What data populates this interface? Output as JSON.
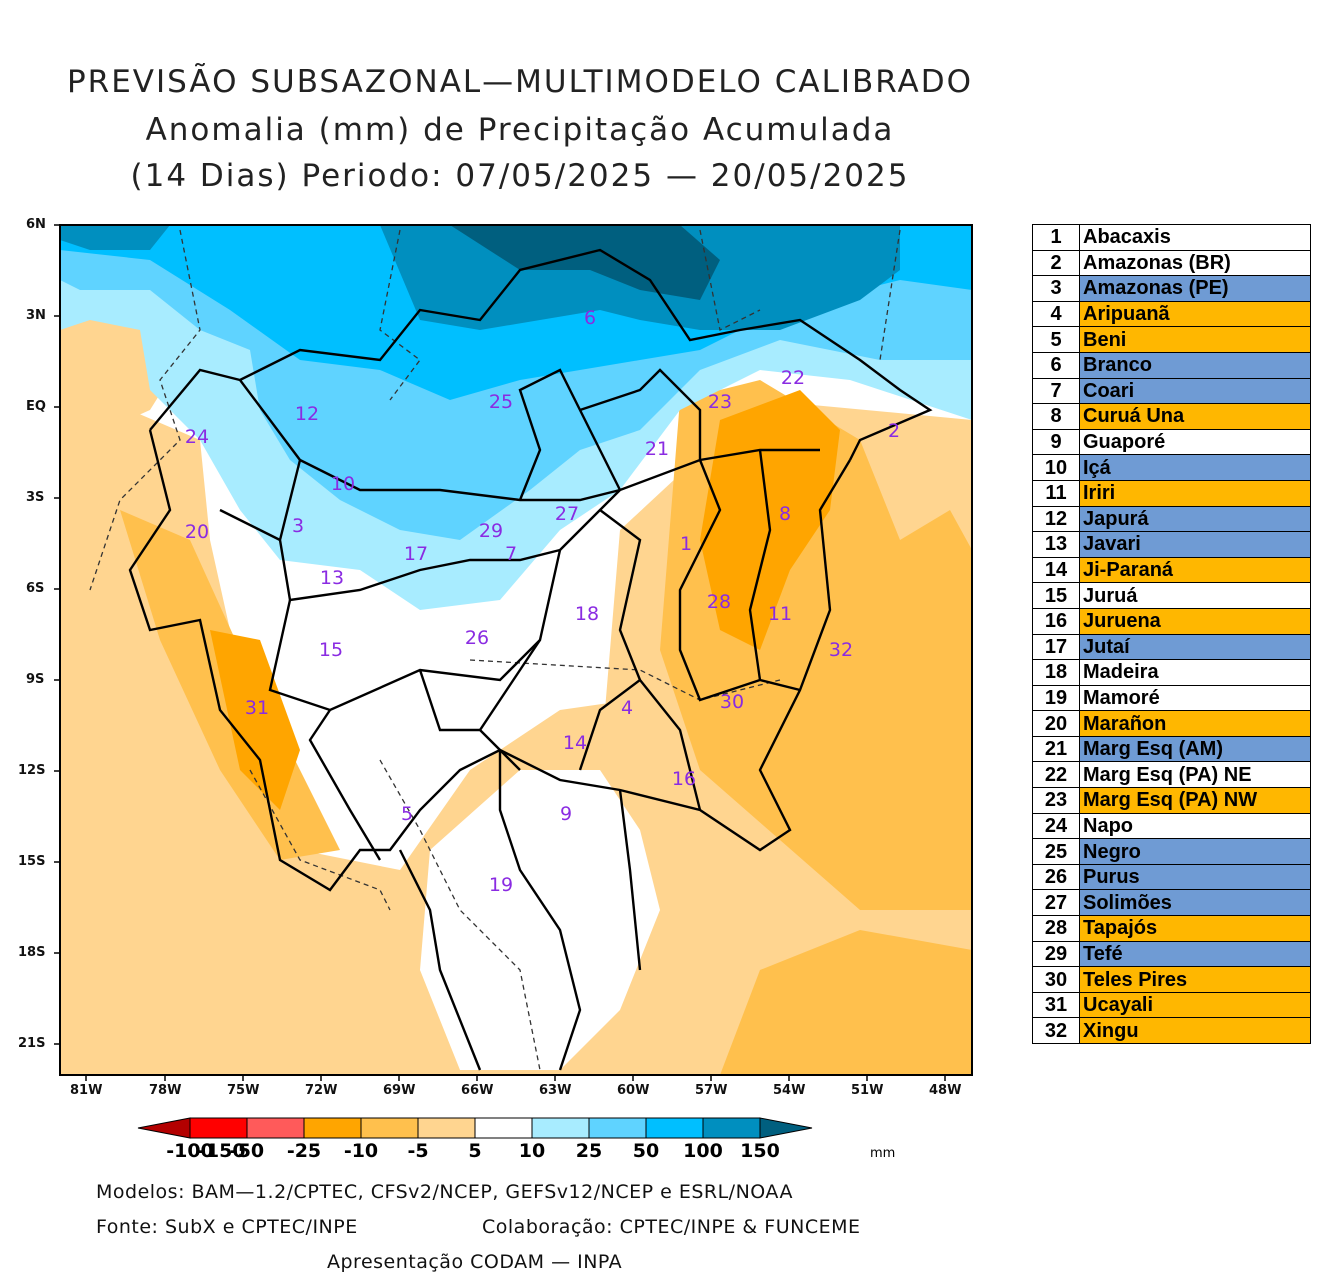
{
  "title": {
    "line1": "PREVISÃO SUBSAZONAL—MULTIMODELO CALIBRADO",
    "line2": "Anomalia (mm) de Precipitação Acumulada",
    "line3": "(14 Dias) Periodo: 07/05/2025 — 20/05/2025"
  },
  "map": {
    "lat_labels": [
      "6N",
      "3N",
      "EQ",
      "3S",
      "6S",
      "9S",
      "12S",
      "15S",
      "18S",
      "21S"
    ],
    "lon_labels": [
      "81W",
      "78W",
      "75W",
      "72W",
      "69W",
      "66W",
      "63W",
      "60W",
      "57W",
      "54W",
      "51W",
      "48W"
    ],
    "basin_numbers": [
      "1",
      "2",
      "3",
      "4",
      "5",
      "6",
      "7",
      "8",
      "9",
      "10",
      "11",
      "12",
      "13",
      "14",
      "15",
      "16",
      "17",
      "18",
      "19",
      "20",
      "21",
      "22",
      "23",
      "24",
      "25",
      "26",
      "27",
      "28",
      "29",
      "30",
      "31",
      "32"
    ],
    "label_color": "#8a2be2"
  },
  "legend": {
    "rows": [
      {
        "num": "1",
        "name": "Abacaxis",
        "color": "#ffffff"
      },
      {
        "num": "2",
        "name": "Amazonas (BR)",
        "color": "#ffffff"
      },
      {
        "num": "3",
        "name": "Amazonas (PE)",
        "color": "#6f9bd4"
      },
      {
        "num": "4",
        "name": "Aripuanã",
        "color": "#ffb700"
      },
      {
        "num": "5",
        "name": "Beni",
        "color": "#ffb700"
      },
      {
        "num": "6",
        "name": "Branco",
        "color": "#6f9bd4"
      },
      {
        "num": "7",
        "name": "Coari",
        "color": "#6f9bd4"
      },
      {
        "num": "8",
        "name": "Curuá Una",
        "color": "#ffb700"
      },
      {
        "num": "9",
        "name": "Guaporé",
        "color": "#ffffff"
      },
      {
        "num": "10",
        "name": "Içá",
        "color": "#6f9bd4"
      },
      {
        "num": "11",
        "name": "Iriri",
        "color": "#ffb700"
      },
      {
        "num": "12",
        "name": "Japurá",
        "color": "#6f9bd4"
      },
      {
        "num": "13",
        "name": "Javari",
        "color": "#6f9bd4"
      },
      {
        "num": "14",
        "name": "Ji-Paraná",
        "color": "#ffb700"
      },
      {
        "num": "15",
        "name": "Juruá",
        "color": "#ffffff"
      },
      {
        "num": "16",
        "name": "Juruena",
        "color": "#ffb700"
      },
      {
        "num": "17",
        "name": "Jutaí",
        "color": "#6f9bd4"
      },
      {
        "num": "18",
        "name": "Madeira",
        "color": "#ffffff"
      },
      {
        "num": "19",
        "name": "Mamoré",
        "color": "#ffffff"
      },
      {
        "num": "20",
        "name": "Marañon",
        "color": "#ffb700"
      },
      {
        "num": "21",
        "name": "Marg Esq (AM)",
        "color": "#6f9bd4"
      },
      {
        "num": "22",
        "name": "Marg Esq (PA) NE",
        "color": "#ffffff"
      },
      {
        "num": "23",
        "name": "Marg Esq (PA) NW",
        "color": "#ffb700"
      },
      {
        "num": "24",
        "name": "Napo",
        "color": "#ffffff"
      },
      {
        "num": "25",
        "name": "Negro",
        "color": "#6f9bd4"
      },
      {
        "num": "26",
        "name": "Purus",
        "color": "#6f9bd4"
      },
      {
        "num": "27",
        "name": "Solimões",
        "color": "#6f9bd4"
      },
      {
        "num": "28",
        "name": "Tapajós",
        "color": "#ffb700"
      },
      {
        "num": "29",
        "name": "Tefé",
        "color": "#6f9bd4"
      },
      {
        "num": "30",
        "name": "Teles Pires",
        "color": "#ffb700"
      },
      {
        "num": "31",
        "name": "Ucayali",
        "color": "#ffb700"
      },
      {
        "num": "32",
        "name": "Xingu",
        "color": "#ffb700"
      }
    ]
  },
  "colorbar": {
    "ticks": [
      "-150",
      "-100",
      "-50",
      "-25",
      "-10",
      "-5",
      "5",
      "10",
      "25",
      "50",
      "100",
      "150"
    ],
    "unit": "mm",
    "colors": [
      "#b30000",
      "#ff0000",
      "#ff5a5a",
      "#ffa500",
      "#ffc04d",
      "#ffd590",
      "#ffffff",
      "#a8ecff",
      "#5fd3ff",
      "#00bfff",
      "#008fbf",
      "#005f7f"
    ]
  },
  "footer": {
    "models": "Modelos: BAM—1.2/CPTEC, CFSv2/NCEP, GEFSv12/NCEP e ESRL/NOAA",
    "source": "Fonte: SubX e CPTEC/INPE",
    "collab": "Colaboração: CPTEC/INPE & FUNCEME",
    "presentation": "Apresentação CODAM — INPA"
  }
}
